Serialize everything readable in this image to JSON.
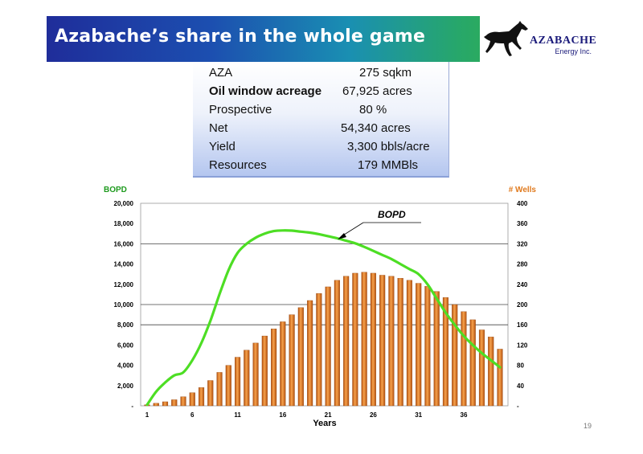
{
  "header": {
    "title": "Azabache’s share in the whole game",
    "logo_name": "AZABACHE",
    "logo_sub": "Energy Inc."
  },
  "info_box": {
    "rows": [
      {
        "label": "AZA",
        "value": "275 sqkm",
        "bold": false
      },
      {
        "label": "Oil window acreage",
        "value": "67,925 acres",
        "bold": true
      },
      {
        "label": "Prospective",
        "value": "80 %",
        "bold": false
      },
      {
        "label": "Net",
        "value": "54,340 acres",
        "bold": false
      },
      {
        "label": "Yield",
        "value": "3,300 bbls/acre",
        "bold": false
      },
      {
        "label": "Resources",
        "value": "179 MMBls",
        "bold": false
      }
    ]
  },
  "chart_data": {
    "type": "bar",
    "title": "",
    "xlabel": "Years",
    "ylabel_left": "BOPD",
    "ylabel_right": "# Wells",
    "x_tick_labels": [
      "1",
      "6",
      "11",
      "16",
      "21",
      "26",
      "31",
      "36"
    ],
    "y_left_ticks": [
      "-",
      "2,000",
      "4,000",
      "6,000",
      "8,000",
      "10,000",
      "12,000",
      "14,000",
      "16,000",
      "18,000",
      "20,000"
    ],
    "y_right_ticks": [
      "-",
      "40",
      "80",
      "120",
      "160",
      "200",
      "240",
      "280",
      "320",
      "360",
      "400"
    ],
    "ylim_left": [
      0,
      20000
    ],
    "ylim_right": [
      0,
      400
    ],
    "grid": "horizontal at 8,000, 10,000 and 16,000",
    "annotation": "BOPD",
    "series": [
      {
        "name": "# Wells",
        "type": "bar",
        "axis": "right",
        "color": "#e07a1e",
        "x": [
          1,
          2,
          3,
          4,
          5,
          6,
          7,
          8,
          9,
          10,
          11,
          12,
          13,
          14,
          15,
          16,
          17,
          18,
          19,
          20,
          21,
          22,
          23,
          24,
          25,
          26,
          27,
          28,
          29,
          30,
          31,
          32,
          33,
          34,
          35,
          36,
          37,
          38,
          39,
          40
        ],
        "values": [
          2,
          5,
          8,
          12,
          18,
          26,
          36,
          50,
          66,
          80,
          96,
          110,
          124,
          138,
          152,
          166,
          180,
          194,
          208,
          222,
          235,
          248,
          256,
          262,
          264,
          262,
          258,
          256,
          252,
          248,
          242,
          236,
          226,
          214,
          200,
          186,
          170,
          150,
          136,
          112
        ]
      },
      {
        "name": "BOPD",
        "type": "line",
        "axis": "left",
        "color": "#4dde24",
        "x": [
          1,
          2,
          3,
          4,
          5,
          6,
          7,
          8,
          9,
          10,
          11,
          12,
          13,
          14,
          15,
          16,
          17,
          18,
          19,
          20,
          21,
          22,
          23,
          24,
          25,
          26,
          27,
          28,
          29,
          30,
          31,
          32,
          33,
          34,
          35,
          36,
          37,
          38,
          39,
          40
        ],
        "values": [
          100,
          1400,
          2300,
          3000,
          3300,
          4500,
          6200,
          8400,
          11000,
          13400,
          15100,
          16000,
          16600,
          17000,
          17250,
          17320,
          17300,
          17200,
          17100,
          16950,
          16750,
          16550,
          16300,
          16050,
          15700,
          15300,
          14900,
          14500,
          14000,
          13500,
          13000,
          12000,
          10600,
          9200,
          8000,
          6900,
          6000,
          5200,
          4500,
          3800
        ]
      }
    ]
  },
  "footer": {
    "slide_number": "19"
  }
}
